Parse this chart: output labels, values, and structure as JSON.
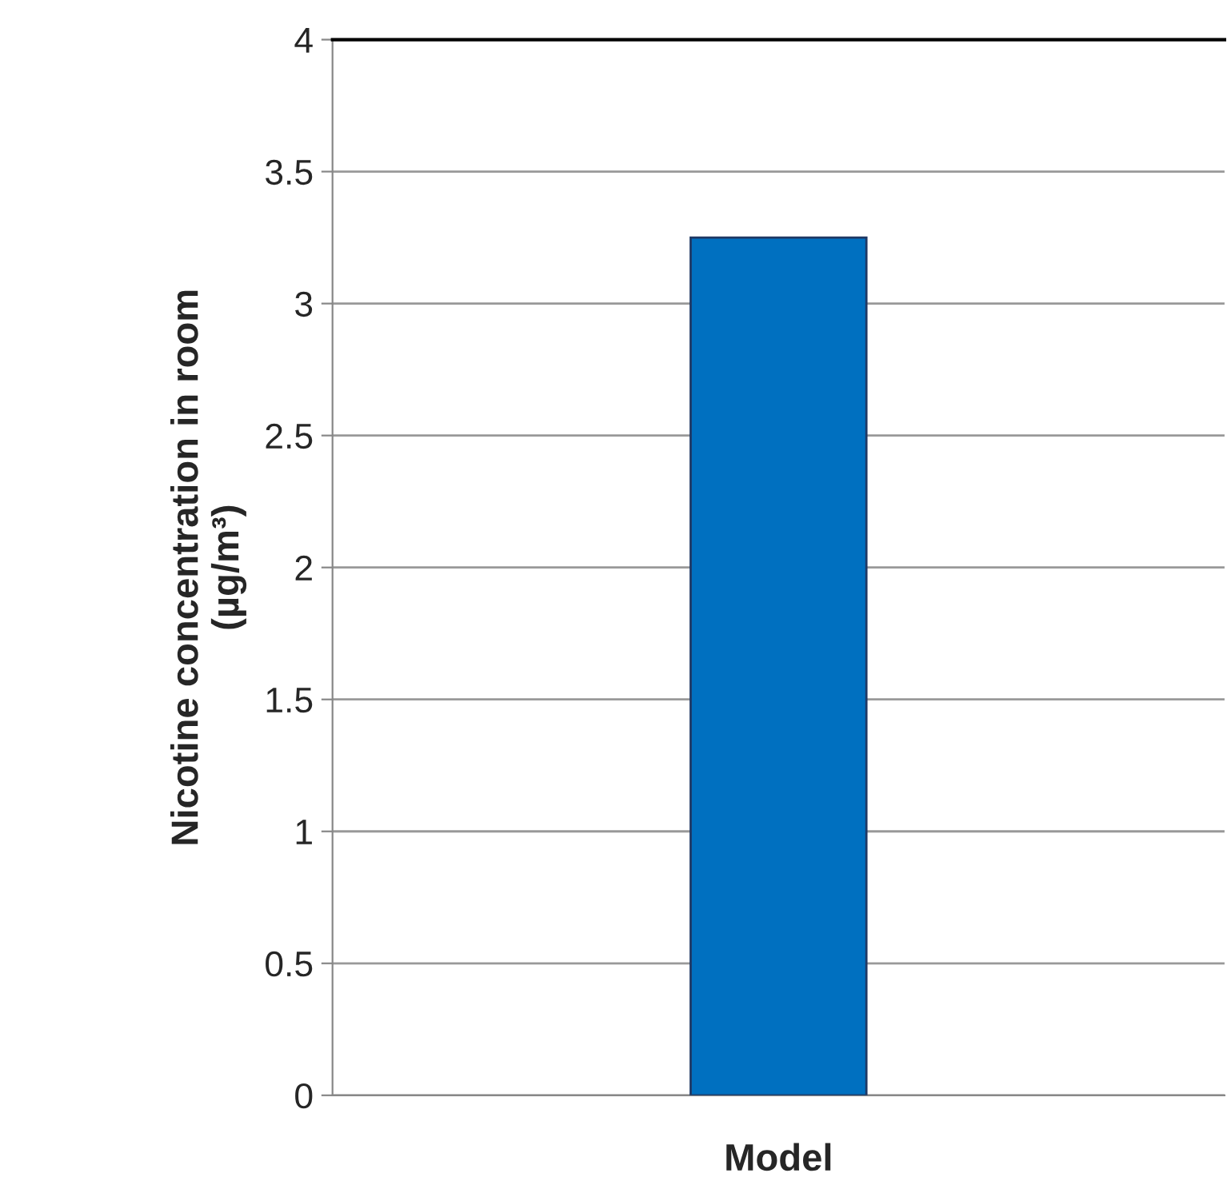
{
  "chart_data": {
    "type": "bar",
    "xlabel": "Model",
    "ylabel": "Nicotine concentration in room\n(µg/m³)",
    "categories": [
      null
    ],
    "values": [
      3.25
    ],
    "color": "#0070c0",
    "ylim": [
      0,
      4
    ],
    "yticks": [
      0,
      0.5,
      1,
      1.5,
      2,
      2.5,
      3,
      3.5,
      4
    ],
    "grid": "y"
  }
}
